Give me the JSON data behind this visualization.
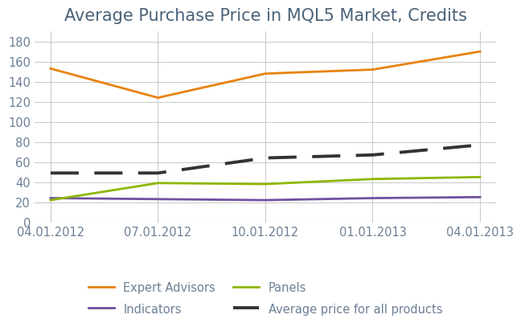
{
  "title": "Average Purchase Price in MQL5 Market, Credits",
  "x_labels": [
    "04.01.2012",
    "07.01.2012",
    "10.01.2012",
    "01.01.2013",
    "04.01.2013"
  ],
  "x_positions": [
    0,
    1,
    2,
    3,
    4
  ],
  "series": {
    "Expert Advisors": {
      "values": [
        153,
        124,
        148,
        152,
        170
      ],
      "color": "#E8820C",
      "linewidth": 2.0,
      "dashes": null
    },
    "Indicators": {
      "values": [
        24,
        23,
        22,
        24,
        25
      ],
      "color": "#7050A0",
      "linewidth": 2.0,
      "dashes": null
    },
    "Panels": {
      "values": [
        22,
        39,
        38,
        43,
        45
      ],
      "color": "#8DB600",
      "linewidth": 2.0,
      "dashes": null
    },
    "Average price for all products": {
      "values": [
        49,
        49,
        64,
        67,
        77
      ],
      "color": "#333333",
      "linewidth": 2.8,
      "dashes": [
        9,
        5
      ]
    }
  },
  "ylim": [
    0,
    190
  ],
  "yticks": [
    0,
    20,
    40,
    60,
    80,
    100,
    120,
    140,
    160,
    180
  ],
  "legend_order": [
    "Expert Advisors",
    "Indicators",
    "Panels",
    "Average price for all products"
  ],
  "legend_ncol": 2,
  "background_color": "#ffffff",
  "plot_bg_color": "#ffffff",
  "grid_color": "#cccccc",
  "title_fontsize": 15,
  "tick_fontsize": 10.5,
  "legend_fontsize": 10.5,
  "tick_color": "#6d8096",
  "title_color": "#4a6278"
}
